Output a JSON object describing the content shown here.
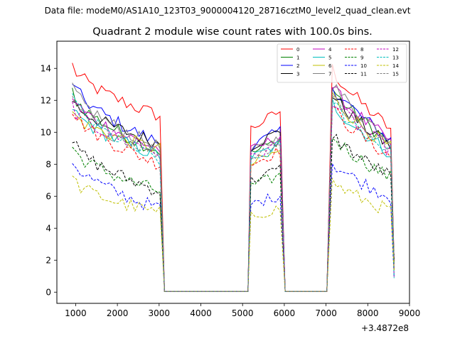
{
  "header": {
    "data_file": "Data file: modeM0/AS1A10_123T03_9000004120_28716cztM0_level2_quad_clean.evt"
  },
  "chart_data": {
    "type": "line",
    "title": "Quadrant 2 module wise count rates with 100.0s bins.",
    "xlabel": "",
    "ylabel": "",
    "x_offset_label": "+3.4872e8",
    "xlim": [
      550,
      9000
    ],
    "ylim": [
      -0.7,
      15.7
    ],
    "x_ticks": [
      1000,
      2000,
      3000,
      4000,
      5000,
      6000,
      7000,
      8000,
      9000
    ],
    "y_ticks": [
      0,
      2,
      4,
      6,
      8,
      10,
      12,
      14
    ],
    "segments": [
      [
        920,
        3050
      ],
      [
        5200,
        5900
      ],
      [
        7150,
        8580
      ]
    ],
    "series": [
      {
        "name": "0",
        "color": "#ff0000",
        "dash": "solid",
        "levels": [
          14.2,
          11.0,
          11.0,
          12.7
        ]
      },
      {
        "name": "1",
        "color": "#008000",
        "dash": "solid",
        "levels": [
          12.6,
          8.8,
          9.3,
          11.6
        ]
      },
      {
        "name": "2",
        "color": "#0000ff",
        "dash": "solid",
        "levels": [
          13.2,
          9.3,
          9.8,
          11.8
        ]
      },
      {
        "name": "3",
        "color": "#000000",
        "dash": "solid",
        "levels": [
          12.1,
          9.3,
          9.8,
          11.3
        ]
      },
      {
        "name": "4",
        "color": "#bf00bf",
        "dash": "solid",
        "levels": [
          12.3,
          8.9,
          9.5,
          11.7
        ]
      },
      {
        "name": "5",
        "color": "#00bfbf",
        "dash": "solid",
        "levels": [
          11.6,
          8.5,
          9.0,
          10.8
        ]
      },
      {
        "name": "6",
        "color": "#bfbf00",
        "dash": "solid",
        "levels": [
          11.3,
          8.9,
          8.6,
          11.2
        ]
      },
      {
        "name": "7",
        "color": "#808080",
        "dash": "solid",
        "levels": [
          12.9,
          9.0,
          9.4,
          11.9
        ]
      },
      {
        "name": "8",
        "color": "#ff0000",
        "dash": "dashed",
        "levels": [
          11.5,
          8.0,
          8.6,
          10.5
        ]
      },
      {
        "name": "9",
        "color": "#008000",
        "dash": "dashed",
        "levels": [
          9.1,
          6.3,
          7.1,
          8.9
        ]
      },
      {
        "name": "10",
        "color": "#0000ff",
        "dash": "dashed",
        "levels": [
          8.3,
          5.2,
          5.9,
          7.4
        ]
      },
      {
        "name": "11",
        "color": "#000000",
        "dash": "dashed",
        "levels": [
          9.5,
          6.3,
          7.5,
          9.0
        ]
      },
      {
        "name": "12",
        "color": "#bf00bf",
        "dash": "dashed",
        "levels": [
          11.7,
          8.7,
          9.0,
          11.0
        ]
      },
      {
        "name": "13",
        "color": "#00bfbf",
        "dash": "dashed",
        "levels": [
          12.3,
          8.2,
          8.8,
          10.9
        ]
      },
      {
        "name": "14",
        "color": "#bfbf00",
        "dash": "dashed",
        "levels": [
          7.1,
          4.9,
          5.1,
          6.3
        ]
      },
      {
        "name": "15",
        "color": "#808080",
        "dash": "dashed",
        "levels": [
          11.9,
          8.7,
          9.1,
          11.2
        ]
      }
    ],
    "legend_position": "upper-right",
    "legend_columns": 4
  }
}
